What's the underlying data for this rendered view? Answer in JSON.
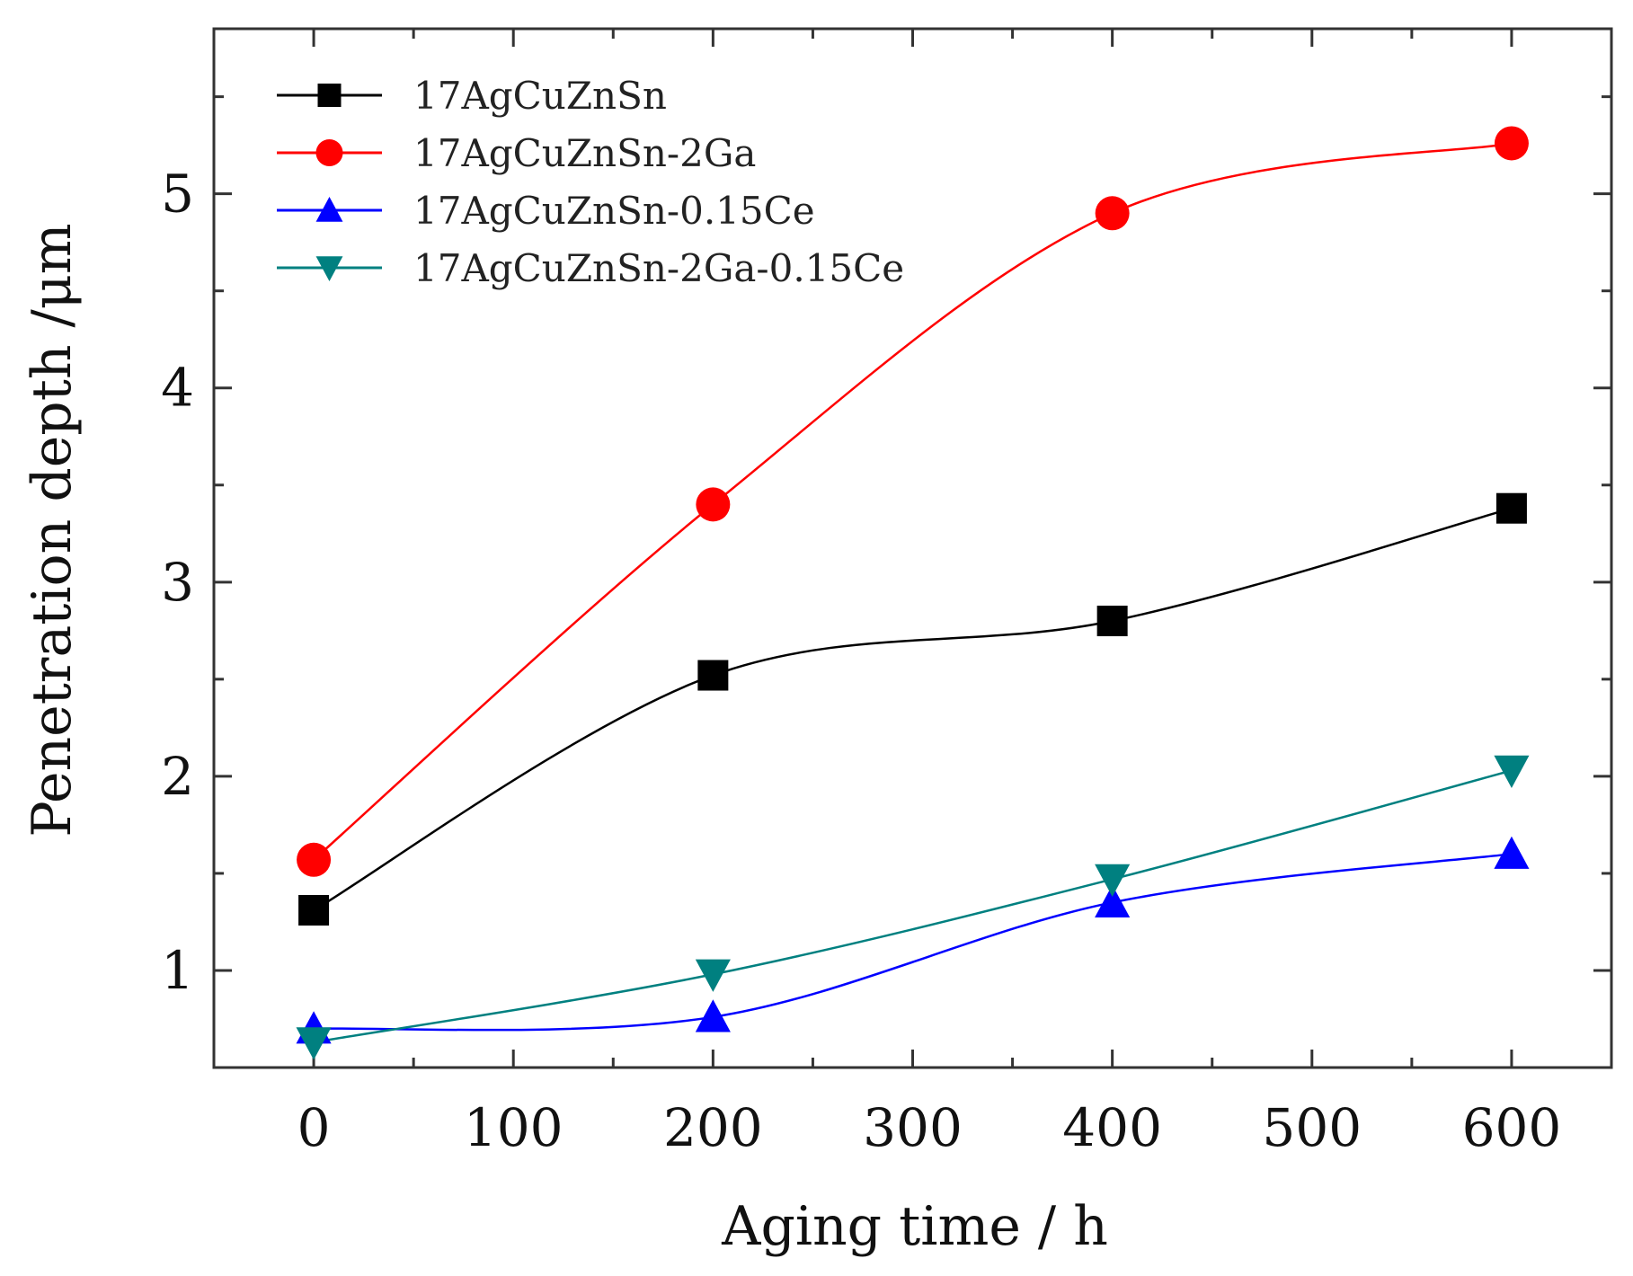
{
  "chart_data": {
    "type": "line",
    "title": "",
    "xlabel": "Aging time / h",
    "ylabel": "Penetration depth /μm",
    "xlim": [
      -50,
      650
    ],
    "ylim": [
      0.5,
      5.85
    ],
    "xticks": [
      0,
      100,
      200,
      300,
      400,
      500,
      600
    ],
    "xtick_labels": [
      "0",
      "100",
      "200",
      "300",
      "400",
      "500",
      "600"
    ],
    "yticks": [
      1,
      2,
      3,
      4,
      5
    ],
    "ytick_labels": [
      "1",
      "2",
      "3",
      "4",
      "5"
    ],
    "grid": false,
    "legend_position": "top-left",
    "x": [
      0,
      200,
      400,
      600
    ],
    "series": [
      {
        "name": "17AgCuZnSn",
        "values": [
          1.31,
          2.52,
          2.8,
          3.38
        ],
        "color": "#000000",
        "marker": "square"
      },
      {
        "name": "17AgCuZnSn-2Ga",
        "values": [
          1.57,
          3.4,
          4.9,
          5.26
        ],
        "color": "#ff0000",
        "marker": "circle"
      },
      {
        "name": "17AgCuZnSn-0.15Ce",
        "values": [
          0.7,
          0.76,
          1.35,
          1.6
        ],
        "color": "#0000ff",
        "marker": "triangle-up"
      },
      {
        "name": "17AgCuZnSn-2Ga-0.15Ce",
        "values": [
          0.63,
          0.98,
          1.47,
          2.03
        ],
        "color": "#008080",
        "marker": "triangle-down"
      }
    ]
  }
}
